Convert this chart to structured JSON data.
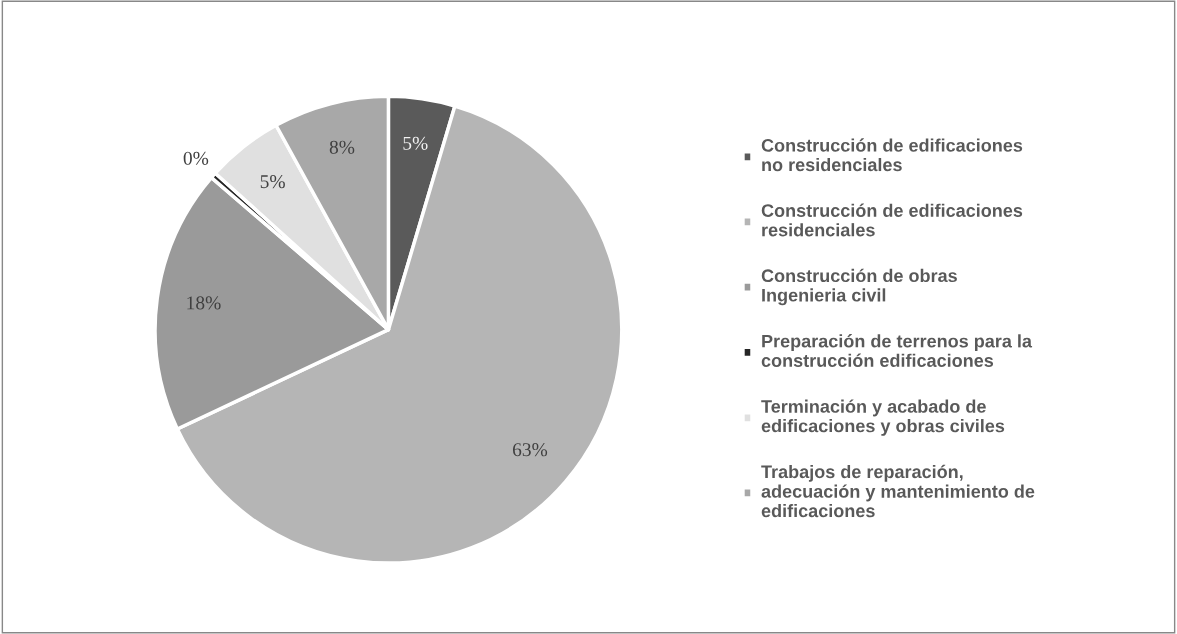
{
  "chart_data": {
    "type": "pie",
    "categories": [
      "Construcción de edificaciones\nno residenciales",
      "Construcción de edificaciones\nresidenciales",
      "Construcción de obras\nIngenieria civil",
      "Preparación de terrenos para la\nconstrucción edificaciones",
      "Terminación y acabado de\nedificaciones y obras civiles",
      "Trabajos de reparación,\nadecuación y mantenimiento de\nedificaciones"
    ],
    "values": [
      4.6,
      63.4,
      18.3,
      0.4,
      5.3,
      8.0
    ],
    "value_labels": [
      "5%",
      "63%",
      "18%",
      "0%",
      "5%",
      "8%"
    ],
    "colors": [
      "#5a5a5a",
      "#b5b5b5",
      "#9a9a9a",
      "#262626",
      "#e0e0e0",
      "#a8a8a8"
    ],
    "legend": "right"
  }
}
